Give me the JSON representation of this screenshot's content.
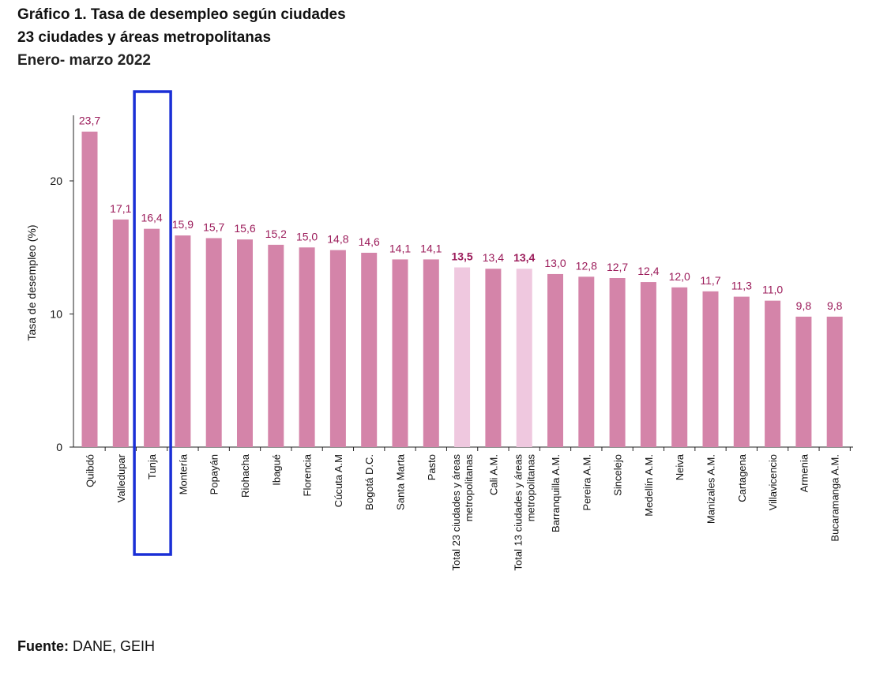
{
  "title_lines": [
    "Gráfico 1. Tasa de desempleo según ciudades",
    "23 ciudades y áreas metropolitanas",
    "Enero- marzo 2022"
  ],
  "source": {
    "label": "Fuente:",
    "text": "DANE, GEIH"
  },
  "chart_data": {
    "type": "bar",
    "ylabel": "Tasa de desempleo (%)",
    "xlabel": "",
    "ylim": [
      0,
      25
    ],
    "yticks": [
      0,
      10,
      20
    ],
    "grid": false,
    "categories": [
      "Quibdó",
      "Valledupar",
      "Tunja",
      "Montería",
      "Popayán",
      "Riohacha",
      "Ibagué",
      "Florencia",
      "Cúcuta A.M",
      "Bogotá D.C.",
      "Santa Marta",
      "Pasto",
      "Total 23 ciudades y áreas metropolitanas",
      "Cali A.M.",
      "Total 13 ciudades y áreas metropolitanas",
      "Barranquilla A.M.",
      "Pereira A.M.",
      "Sincelejo",
      "Medellín A.M.",
      "Neiva",
      "Manizales A.M.",
      "Cartagena",
      "Villavicencio",
      "Armenia",
      "Bucaramanga A.M."
    ],
    "values": [
      23.7,
      17.1,
      16.4,
      15.9,
      15.7,
      15.6,
      15.2,
      15.0,
      14.8,
      14.6,
      14.1,
      14.1,
      13.5,
      13.4,
      13.4,
      13.0,
      12.8,
      12.7,
      12.4,
      12.0,
      11.7,
      11.3,
      11.0,
      9.8,
      9.8
    ],
    "value_labels": [
      "23,7",
      "17,1",
      "16,4",
      "15,9",
      "15,7",
      "15,6",
      "15,2",
      "15,0",
      "14,8",
      "14,6",
      "14,1",
      "14,1",
      "13,5",
      "13,4",
      "13,4",
      "13,0",
      "12,8",
      "12,7",
      "12,4",
      "12,0",
      "11,7",
      "11,3",
      "11,0",
      "9,8",
      "9,8"
    ],
    "highlight_totals": [
      "Total 23 ciudades y áreas metropolitanas",
      "Total 13 ciudades y áreas metropolitanas"
    ],
    "highlight_box": "Tunja",
    "colors": {
      "bar": "#d484a9",
      "bar_total": "#efc8df",
      "value_label": "#9b1b5a",
      "highlight_box": "#1a2fd6"
    }
  }
}
